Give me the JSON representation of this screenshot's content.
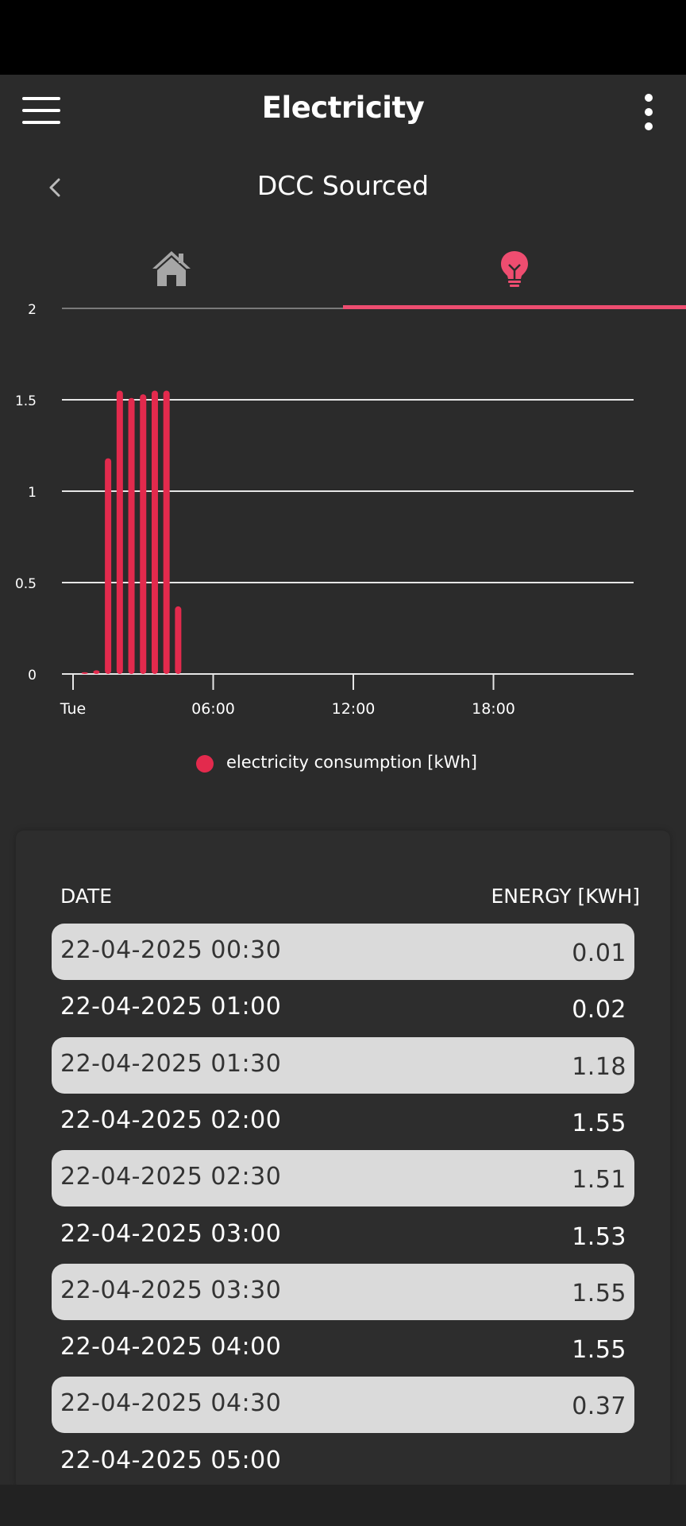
{
  "app_bar": {
    "title": "Electricity"
  },
  "sub_header": {
    "title": "DCC Sourced"
  },
  "tabs": [
    {
      "name": "home",
      "icon": "home-icon",
      "active": false
    },
    {
      "name": "electricity",
      "icon": "lightbulb-icon",
      "active": true
    }
  ],
  "colors": {
    "accent": "#ee4d70",
    "bar": "#e32a4d",
    "background": "#2b2b2b",
    "row_shade": "#dadada"
  },
  "chart_data": {
    "type": "bar",
    "title": "",
    "xlabel": "",
    "ylabel": "",
    "ylim": [
      0,
      2
    ],
    "grid": true,
    "y_ticks": [
      "0",
      "0.5",
      "1",
      "1.5",
      "2"
    ],
    "x_ticks": [
      "Tue",
      "06:00",
      "12:00",
      "18:00"
    ],
    "x_tick_hours": [
      0,
      6,
      12,
      18
    ],
    "x_range_hours": [
      0,
      24
    ],
    "legend_position": "bottom",
    "series": [
      {
        "name": "electricity consumption [kWh]",
        "x_hours": [
          0.5,
          1.0,
          1.5,
          2.0,
          2.5,
          3.0,
          3.5,
          4.0,
          4.5
        ],
        "values": [
          0.01,
          0.02,
          1.18,
          1.55,
          1.51,
          1.53,
          1.55,
          1.55,
          0.37
        ]
      }
    ]
  },
  "legend": {
    "label": "electricity consumption [kWh]"
  },
  "table": {
    "headers": {
      "date": "DATE",
      "energy": "ENERGY [KWH]"
    },
    "rows": [
      {
        "date": "22-04-2025 00:30",
        "energy": "0.01"
      },
      {
        "date": "22-04-2025 01:00",
        "energy": "0.02"
      },
      {
        "date": "22-04-2025 01:30",
        "energy": "1.18"
      },
      {
        "date": "22-04-2025 02:00",
        "energy": "1.55"
      },
      {
        "date": "22-04-2025 02:30",
        "energy": "1.51"
      },
      {
        "date": "22-04-2025 03:00",
        "energy": "1.53"
      },
      {
        "date": "22-04-2025 03:30",
        "energy": "1.55"
      },
      {
        "date": "22-04-2025 04:00",
        "energy": "1.55"
      },
      {
        "date": "22-04-2025 04:30",
        "energy": "0.37"
      },
      {
        "date": "22-04-2025 05:00",
        "energy": ""
      }
    ]
  }
}
